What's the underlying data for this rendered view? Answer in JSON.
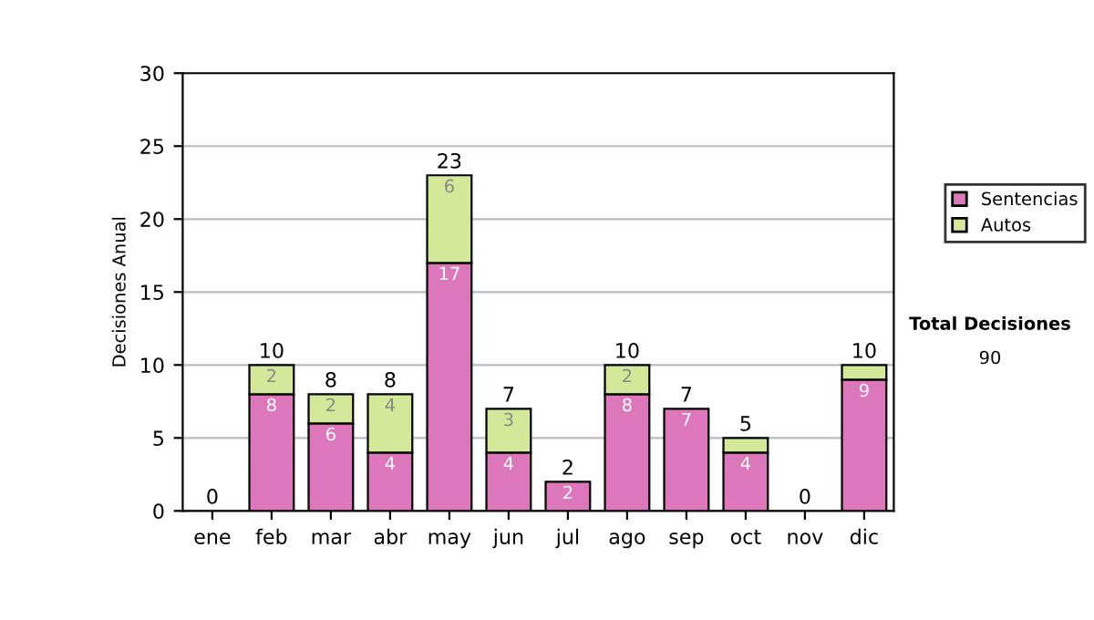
{
  "chart_data": {
    "type": "bar",
    "stacked": true,
    "ylabel": "Decisiones Anual",
    "categories": [
      "ene",
      "feb",
      "mar",
      "abr",
      "may",
      "jun",
      "jul",
      "ago",
      "sep",
      "oct",
      "nov",
      "dic"
    ],
    "series": [
      {
        "name": "Sentencias",
        "color": "#dd77bb",
        "values": [
          0,
          8,
          6,
          4,
          17,
          4,
          2,
          8,
          7,
          4,
          0,
          9
        ],
        "value_labels": [
          null,
          "8",
          "6",
          "4",
          "17",
          "4",
          "2",
          "8",
          "7",
          "4",
          null,
          "9"
        ]
      },
      {
        "name": "Autos",
        "color": "#d4e89a",
        "values": [
          0,
          2,
          2,
          4,
          6,
          3,
          0,
          2,
          0,
          1,
          0,
          1
        ],
        "value_labels": [
          null,
          "2",
          "2",
          "4",
          "6",
          "3",
          null,
          "2",
          null,
          null,
          null,
          null
        ]
      }
    ],
    "totals": [
      "0",
      "10",
      "8",
      "8",
      "23",
      "7",
      "2",
      "10",
      "7",
      "5",
      "0",
      "10"
    ],
    "ylim": [
      0,
      30
    ],
    "yticks": [
      0,
      5,
      10,
      15,
      20,
      25,
      30
    ],
    "grid": "y",
    "legend": "right",
    "annotations": [
      "Total Decisiones",
      "90"
    ]
  }
}
